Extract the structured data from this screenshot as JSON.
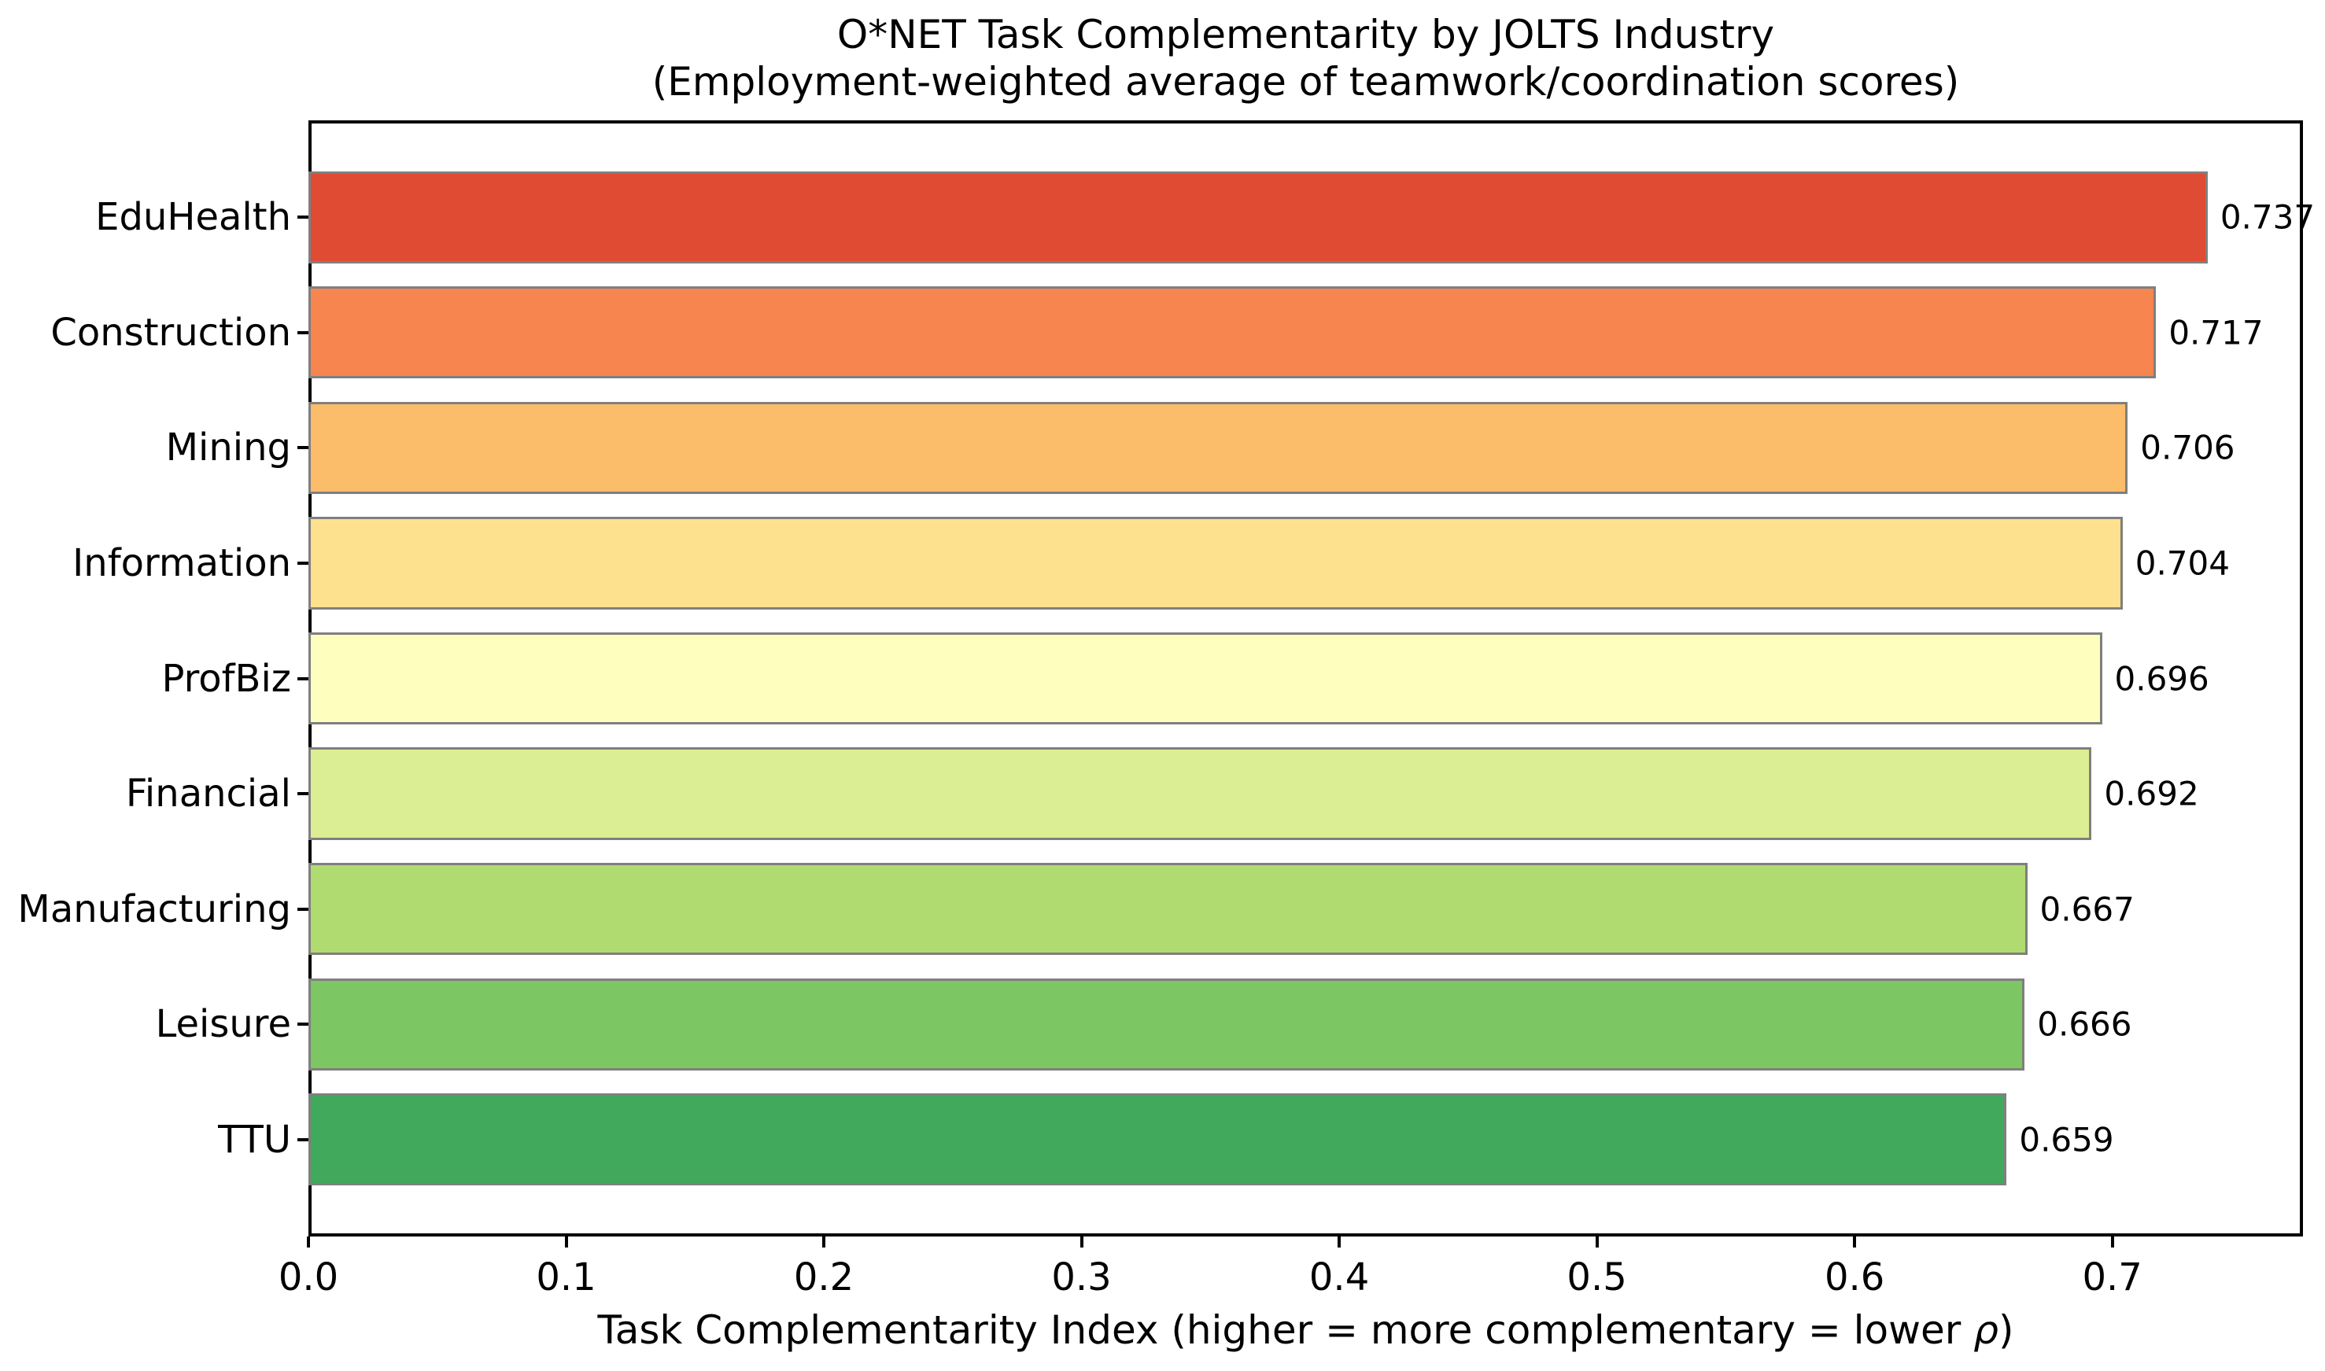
{
  "chart_data": {
    "type": "bar",
    "orientation": "horizontal",
    "title": "O*NET Task Complementarity by JOLTS Industry",
    "subtitle": "(Employment-weighted average of teamwork/coordination scores)",
    "xlabel_prefix": "Task Complementarity Index (higher = more complementary = lower ",
    "xlabel_rho": "ρ",
    "xlabel_suffix": ")",
    "categories": [
      "EduHealth",
      "Construction",
      "Mining",
      "Information",
      "ProfBiz",
      "Financial",
      "Manufacturing",
      "Leisure",
      "TTU"
    ],
    "values": [
      0.737,
      0.717,
      0.706,
      0.704,
      0.696,
      0.692,
      0.667,
      0.666,
      0.659
    ],
    "value_labels": [
      "0.737",
      "0.717",
      "0.706",
      "0.704",
      "0.696",
      "0.692",
      "0.667",
      "0.666",
      "0.659"
    ],
    "bar_colors": [
      "#e04b33",
      "#f6854f",
      "#fcbd6a",
      "#fde18e",
      "#fefebe",
      "#dcee93",
      "#b0db71",
      "#7cc664",
      "#40a95c"
    ],
    "bar_edge_color": "#7f7f7f",
    "x_tick_values": [
      0.0,
      0.1,
      0.2,
      0.3,
      0.4,
      0.5,
      0.6,
      0.7
    ],
    "x_tick_labels": [
      "0.0",
      "0.1",
      "0.2",
      "0.3",
      "0.4",
      "0.5",
      "0.6",
      "0.7"
    ],
    "xlim": [
      0,
      0.774
    ],
    "grid": false,
    "legend": null,
    "background_color": "#ffffff",
    "spine_color": "#000000"
  }
}
